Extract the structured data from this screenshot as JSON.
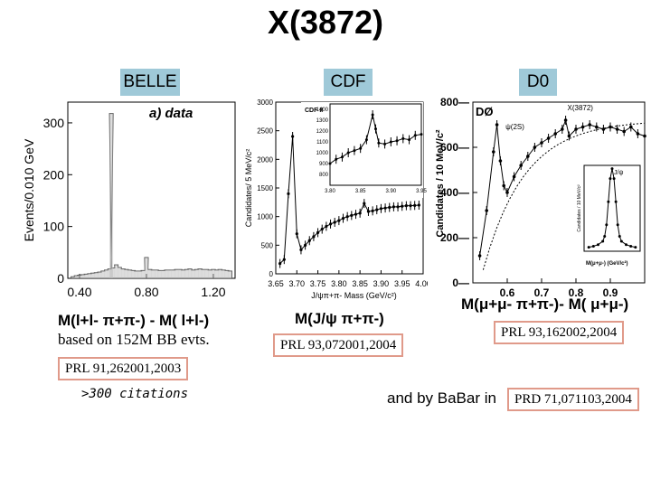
{
  "slide": {
    "title": "X(3872)"
  },
  "experiments": [
    {
      "label": "BELLE",
      "color": "#9fc9d8"
    },
    {
      "label": "CDF",
      "color": "#9fc9d8"
    },
    {
      "label": "D0",
      "color": "#9fc9d8"
    }
  ],
  "chart_data": [
    {
      "type": "bar",
      "name": "belle",
      "title": "a) data",
      "ylabel": "Events/0.010 GeV",
      "xlabel": "M(l+l-π+π-) - M(l+l-)",
      "xlim": [
        0.33,
        1.33
      ],
      "ylim": [
        0,
        340
      ],
      "xticks": [
        "0.40",
        "0.80",
        "1.20"
      ],
      "yticks": [
        "0",
        "100",
        "200",
        "300"
      ],
      "x": [
        0.36,
        0.38,
        0.4,
        0.42,
        0.44,
        0.46,
        0.48,
        0.5,
        0.52,
        0.54,
        0.56,
        0.58,
        0.59,
        0.6,
        0.62,
        0.64,
        0.66,
        0.68,
        0.7,
        0.72,
        0.74,
        0.76,
        0.78,
        0.8,
        0.82,
        0.84,
        0.86,
        0.88,
        0.9,
        0.92,
        0.94,
        0.96,
        0.98,
        1.0,
        1.02,
        1.04,
        1.06,
        1.08,
        1.1,
        1.12,
        1.14,
        1.16,
        1.18,
        1.2,
        1.22,
        1.24,
        1.26,
        1.28,
        1.3
      ],
      "values": [
        3,
        5,
        6,
        7,
        8,
        9,
        10,
        11,
        12,
        14,
        16,
        18,
        318,
        20,
        26,
        21,
        18,
        17,
        16,
        15,
        14,
        14,
        15,
        40,
        17,
        16,
        16,
        15,
        15,
        16,
        16,
        16,
        17,
        17,
        16,
        17,
        18,
        16,
        17,
        18,
        17,
        17,
        16,
        17,
        16,
        17,
        16,
        15,
        14
      ]
    },
    {
      "type": "scatter",
      "name": "cdf",
      "title": "CDF II",
      "ylabel": "Candidates/ 5 MeV/c²",
      "xlabel": "J/ψπ+π- Mass (GeV/c²)",
      "xlim": [
        3.65,
        4.0
      ],
      "ylim": [
        0,
        3000
      ],
      "xticks": [
        "3.65",
        "3.70",
        "3.75",
        "3.80",
        "3.85",
        "3.90",
        "3.95",
        "4.00"
      ],
      "yticks": [
        "0",
        "500",
        "1000",
        "1500",
        "2000",
        "2500",
        "3000"
      ],
      "x": [
        3.66,
        3.67,
        3.68,
        3.69,
        3.7,
        3.71,
        3.72,
        3.73,
        3.74,
        3.75,
        3.76,
        3.77,
        3.78,
        3.79,
        3.8,
        3.81,
        3.82,
        3.83,
        3.84,
        3.85,
        3.86,
        3.87,
        3.88,
        3.89,
        3.9,
        3.91,
        3.92,
        3.93,
        3.94,
        3.95,
        3.96,
        3.97,
        3.98,
        3.99
      ],
      "values": [
        180,
        250,
        1400,
        2400,
        700,
        420,
        500,
        580,
        650,
        720,
        780,
        830,
        870,
        900,
        930,
        970,
        1000,
        1020,
        1040,
        1060,
        1230,
        1090,
        1100,
        1120,
        1140,
        1150,
        1160,
        1170,
        1170,
        1180,
        1190,
        1190,
        1195,
        1200
      ],
      "inset": {
        "xlim": [
          3.8,
          3.95
        ],
        "ylim": [
          700,
          1450
        ],
        "xticks": [
          "3.80",
          "3.85",
          "3.90",
          "3.95"
        ],
        "yticks": [
          "800",
          "900",
          "1000",
          "1100",
          "1200",
          "1300",
          "1400"
        ],
        "x": [
          3.8,
          3.81,
          3.82,
          3.83,
          3.84,
          3.85,
          3.86,
          3.87,
          3.875,
          3.88,
          3.89,
          3.9,
          3.91,
          3.92,
          3.93,
          3.94,
          3.95
        ],
        "values": [
          900,
          940,
          960,
          1000,
          1020,
          1040,
          1120,
          1350,
          1220,
          1090,
          1080,
          1100,
          1110,
          1130,
          1120,
          1160,
          1170
        ]
      }
    },
    {
      "type": "scatter",
      "name": "d0",
      "title": "DØ",
      "ylabel": "Candidates / 10 MeV/c²",
      "xlabel": "M(μ+μ-π+π-)- M(μ+μ-)",
      "xlim": [
        0.5,
        1.0
      ],
      "ylim": [
        0,
        800
      ],
      "xticks": [
        "0.6",
        "0.7",
        "0.8",
        "0.9"
      ],
      "yticks": [
        "0",
        "200",
        "400",
        "600",
        "800"
      ],
      "annotations": [
        "ψ(2S)",
        "X(3872)"
      ],
      "x": [
        0.52,
        0.54,
        0.56,
        0.57,
        0.58,
        0.59,
        0.6,
        0.62,
        0.64,
        0.66,
        0.68,
        0.7,
        0.72,
        0.74,
        0.76,
        0.77,
        0.78,
        0.8,
        0.82,
        0.84,
        0.86,
        0.88,
        0.9,
        0.92,
        0.94,
        0.96,
        0.98,
        1.0
      ],
      "values": [
        120,
        320,
        580,
        700,
        540,
        430,
        400,
        470,
        520,
        560,
        600,
        620,
        640,
        660,
        680,
        720,
        650,
        680,
        690,
        700,
        690,
        680,
        690,
        680,
        670,
        690,
        660,
        650
      ],
      "inset": {
        "title": "J/ψ",
        "xlim": [
          2.8,
          3.4
        ],
        "ylim": [
          0,
          26000
        ],
        "xlabel": "M(μ+μ-) (GeV/c²)",
        "ylabel": "Candidates / 10 MeV/c²",
        "x": [
          2.85,
          2.9,
          2.95,
          3.0,
          3.02,
          3.04,
          3.06,
          3.08,
          3.1,
          3.12,
          3.14,
          3.16,
          3.18,
          3.2,
          3.25,
          3.3,
          3.35
        ],
        "values": [
          1200,
          1500,
          2000,
          3000,
          4500,
          8000,
          15000,
          22000,
          25000,
          22000,
          15000,
          8000,
          4500,
          3000,
          2000,
          1500,
          1200
        ]
      }
    }
  ],
  "formulas": {
    "belle": "M(l+l- π+π-) - M( l+l-)",
    "cdf": "M(J/ψ π+π-)",
    "d0": "M(μ+μ- π+π-)- M( μ+μ-)"
  },
  "notes": {
    "belle_stats": "based on 152M BB evts.",
    "citations": ">300 citations",
    "babar": "and by BaBar in"
  },
  "references": {
    "belle": "PRL 91,262001,2003",
    "cdf": "PRL 93,072001,2004",
    "d0": "PRL 93,162002,2004",
    "babar": "PRD 71,071103,2004"
  }
}
